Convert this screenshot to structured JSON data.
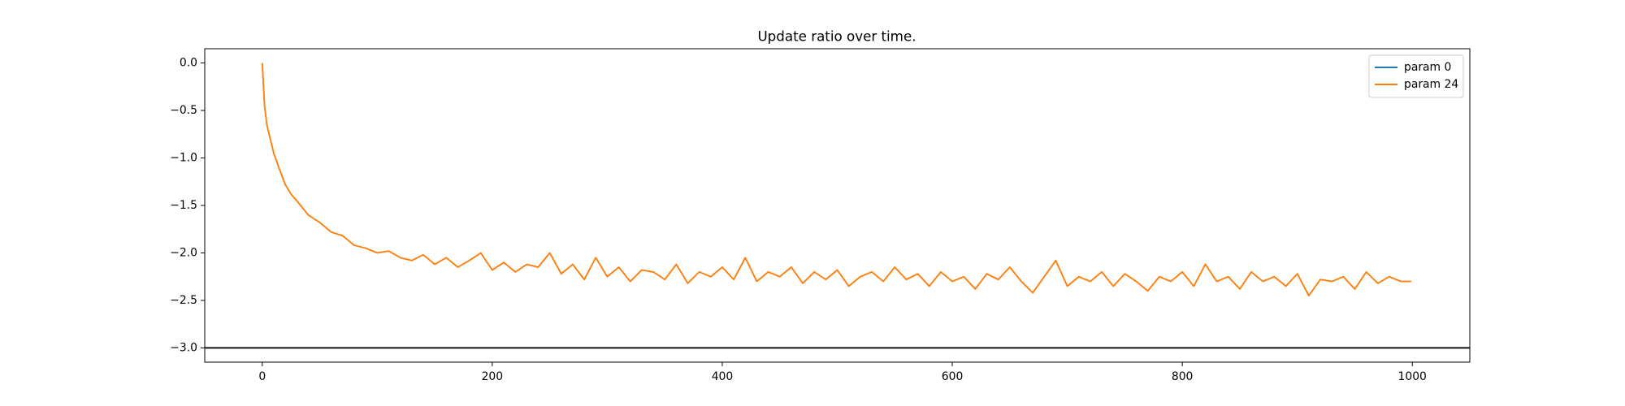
{
  "chart_data": {
    "type": "line",
    "title": "Update ratio over time.",
    "x": [
      0,
      2,
      4,
      6,
      8,
      10,
      15,
      20,
      25,
      30,
      40,
      50,
      60,
      70,
      80,
      90,
      100,
      110,
      120,
      130,
      140,
      150,
      160,
      170,
      180,
      190,
      200,
      210,
      220,
      230,
      240,
      250,
      260,
      270,
      280,
      290,
      300,
      310,
      320,
      330,
      340,
      350,
      360,
      370,
      380,
      390,
      400,
      410,
      420,
      430,
      440,
      450,
      460,
      470,
      480,
      490,
      500,
      510,
      520,
      530,
      540,
      550,
      560,
      570,
      580,
      590,
      600,
      610,
      620,
      630,
      640,
      650,
      660,
      670,
      680,
      690,
      700,
      710,
      720,
      730,
      740,
      750,
      760,
      770,
      780,
      790,
      800,
      810,
      820,
      830,
      840,
      850,
      860,
      870,
      880,
      890,
      900,
      910,
      920,
      930,
      940,
      950,
      960,
      970,
      980,
      990,
      999
    ],
    "series": [
      {
        "name": "param 0",
        "color": "#1f77b4",
        "values": [
          null,
          null,
          null,
          null,
          null,
          null,
          null,
          null,
          null,
          null,
          null,
          null,
          null,
          null,
          null,
          null,
          null,
          null,
          null,
          null,
          null,
          null,
          null,
          null,
          null,
          null,
          null,
          null,
          null,
          null,
          null,
          null,
          null,
          null,
          null,
          null,
          null,
          null,
          null,
          null,
          null,
          null,
          null,
          null,
          null,
          null,
          null,
          null,
          null,
          null,
          null,
          null,
          null,
          null,
          null,
          null,
          null,
          null,
          null,
          null,
          null,
          null,
          null,
          null,
          null,
          null,
          null,
          null,
          null,
          null,
          null,
          null,
          null,
          null,
          null,
          null,
          null,
          null,
          null,
          null,
          null,
          null,
          null,
          null,
          null,
          null,
          null,
          null,
          null,
          null,
          null,
          null,
          null,
          null,
          null,
          null,
          null,
          null,
          null,
          null,
          null,
          null,
          null,
          null,
          null,
          null,
          null
        ]
      },
      {
        "name": "param 24",
        "color": "#ff7f0e",
        "values": [
          0,
          -0.45,
          -0.65,
          -0.75,
          -0.85,
          -0.95,
          -1.12,
          -1.28,
          -1.38,
          -1.45,
          -1.6,
          -1.68,
          -1.78,
          -1.82,
          -1.92,
          -1.95,
          -2.0,
          -1.98,
          -2.05,
          -2.08,
          -2.02,
          -2.12,
          -2.05,
          -2.15,
          -2.08,
          -2.0,
          -2.18,
          -2.1,
          -2.2,
          -2.12,
          -2.15,
          -2.0,
          -2.22,
          -2.12,
          -2.28,
          -2.05,
          -2.25,
          -2.15,
          -2.3,
          -2.18,
          -2.2,
          -2.28,
          -2.12,
          -2.32,
          -2.2,
          -2.25,
          -2.15,
          -2.28,
          -2.05,
          -2.3,
          -2.2,
          -2.25,
          -2.15,
          -2.32,
          -2.2,
          -2.28,
          -2.18,
          -2.35,
          -2.25,
          -2.2,
          -2.3,
          -2.15,
          -2.28,
          -2.22,
          -2.35,
          -2.2,
          -2.3,
          -2.25,
          -2.38,
          -2.22,
          -2.28,
          -2.15,
          -2.3,
          -2.42,
          -2.25,
          -2.08,
          -2.35,
          -2.25,
          -2.3,
          -2.2,
          -2.35,
          -2.22,
          -2.3,
          -2.4,
          -2.25,
          -2.3,
          -2.2,
          -2.35,
          -2.12,
          -2.3,
          -2.25,
          -2.38,
          -2.2,
          -2.3,
          -2.25,
          -2.35,
          -2.22,
          -2.45,
          -2.28,
          -2.3,
          -2.25,
          -2.38,
          -2.2,
          -2.32,
          -2.25,
          -2.3,
          -2.3
        ]
      }
    ],
    "hline": {
      "y": -3,
      "color": "#000000"
    },
    "xlim": [
      -50,
      1050
    ],
    "xticks": [
      0,
      200,
      400,
      600,
      800,
      1000
    ],
    "ylim": [
      -3.15,
      0.15
    ],
    "yticks": [
      {
        "value": -3,
        "label": "−3.0"
      },
      {
        "value": -2.5,
        "label": "−2.5"
      },
      {
        "value": -2,
        "label": "−2.0"
      },
      {
        "value": -1.5,
        "label": "−1.5"
      },
      {
        "value": -1,
        "label": "−1.0"
      },
      {
        "value": -0.5,
        "label": "−0.5"
      },
      {
        "value": 0,
        "label": "0.0"
      }
    ],
    "legend": "upper right",
    "grid": false
  }
}
